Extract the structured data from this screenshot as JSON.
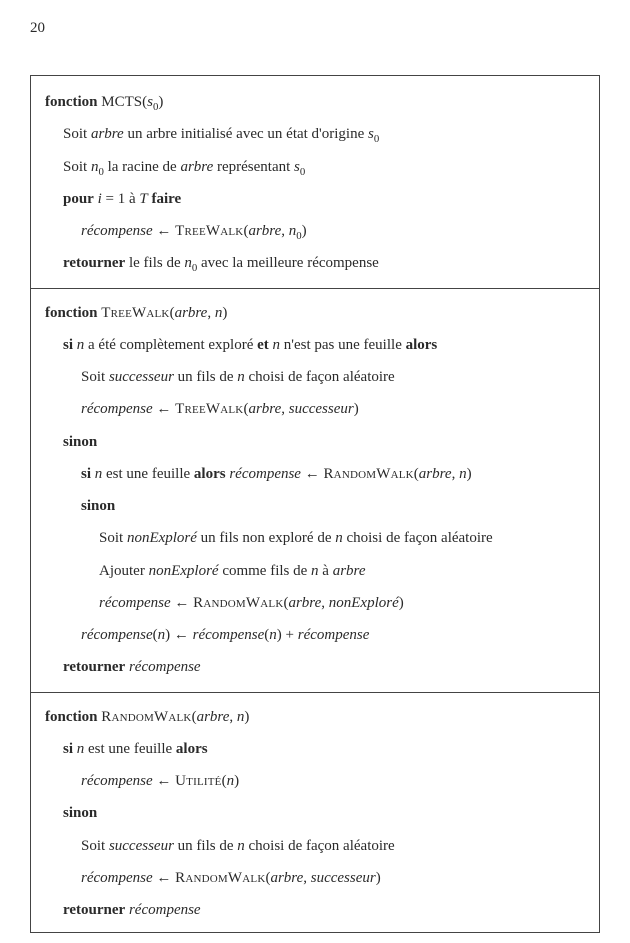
{
  "page": {
    "number": "20"
  },
  "kw": {
    "fonction": "fonction",
    "pour": "pour",
    "faire": "faire",
    "retourner": "retourner",
    "si": "si",
    "alors": "alors",
    "sinon": "sinon",
    "et": "et"
  },
  "fn": {
    "mcts": "MCTS",
    "treewalk": "TreeWalk",
    "randomwalk": "RandomWalk",
    "utilite": "Utilité"
  },
  "var": {
    "arbre": "arbre",
    "s0_base": "s",
    "s0_sub": "0",
    "n0_base": "n",
    "n0_sub": "0",
    "n": "n",
    "i": "i",
    "T": "T",
    "recompense": "récompense",
    "successeur": "successeur",
    "nonExplore": "nonExploré"
  },
  "txt": {
    "mcts_l1a": "Soit ",
    "mcts_l1b": " un arbre initialisé avec un état d'origine ",
    "mcts_l2a": "Soit ",
    "mcts_l2b": " la racine de ",
    "mcts_l2c": " représentant ",
    "mcts_l3a": " = 1 à ",
    "mcts_l5a": " le fils de ",
    "mcts_l5b": " avec la meilleure récompense",
    "tw_l1a": " a été complètement exploré ",
    "tw_l1b": " n'est pas une feuille ",
    "tw_l2a": "Soit ",
    "tw_l2b": " un fils de ",
    "tw_l2c": " choisi de façon aléatoire",
    "tw_l5a": " est une feuille ",
    "tw_l7a": "Soit ",
    "tw_l7b": " un fils non exploré de ",
    "tw_l7c": " choisi de façon aléatoire",
    "tw_l8a": "Ajouter ",
    "tw_l8b": " comme fils de ",
    "tw_l8c": " à ",
    "rw_l1a": " est une feuille ",
    "rw_l4a": "Soit ",
    "rw_l4b": " un fils de ",
    "rw_l4c": " choisi de façon aléatoire",
    "assign": " ← ",
    "plus": " + ",
    "comma_sp": ", ",
    "lp": "(",
    "rp": ")"
  }
}
